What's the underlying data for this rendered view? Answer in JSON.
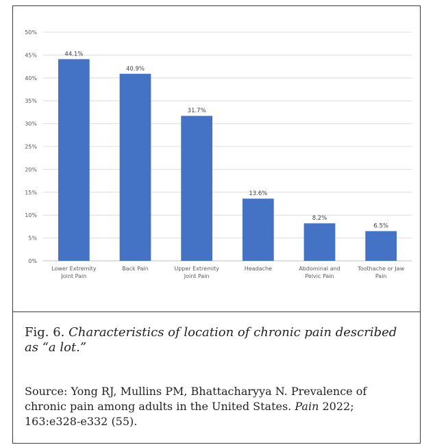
{
  "chart_data": {
    "type": "bar",
    "categories": [
      [
        "Lower Extremity",
        "Joint Pain"
      ],
      [
        "Back Pain"
      ],
      [
        "Upper Extremity",
        "Joint Pain"
      ],
      [
        "Headache"
      ],
      [
        "Abdominal and",
        "Pelvic Pain"
      ],
      [
        "Toothache or Jaw",
        "Pain"
      ]
    ],
    "values": [
      44.1,
      40.9,
      31.7,
      13.6,
      8.2,
      6.5
    ],
    "data_labels": [
      "44.1%",
      "40.9%",
      "31.7%",
      "13.6%",
      "8.2%",
      "6.5%"
    ],
    "ylim": [
      0,
      50
    ],
    "yticks": [
      "0%",
      "5%",
      "10%",
      "15%",
      "20%",
      "25%",
      "30%",
      "35%",
      "40%",
      "45%",
      "50%"
    ],
    "grid": true,
    "bar_color": "#4472c4",
    "title": "",
    "xlabel": "",
    "ylabel": ""
  },
  "caption": {
    "fig_num": "Fig. 6.",
    "text": "Characteristics of location of chronic pain described as “a lot.”"
  },
  "source": {
    "prefix": "Source: Yong RJ, Mullins PM, Bhattacharyya N. Prevalence of chronic pain among adults in the United States.",
    "journal": "Pain",
    "suffix": "2022; 163:e328-e332 (55)."
  }
}
